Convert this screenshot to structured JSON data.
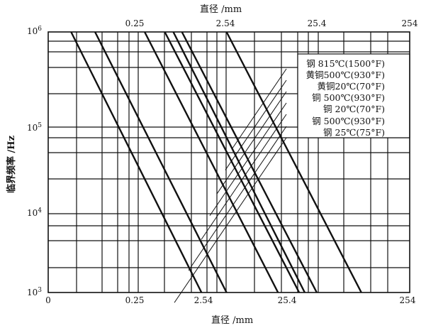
{
  "chart_data": {
    "type": "line",
    "title": "",
    "xlabel": "直径 /mm",
    "xlabel_top": "直径 /mm",
    "ylabel": "临界频率 /Hz",
    "x_scale": "log",
    "y_scale": "log",
    "x_ticks": [
      "0",
      "0.25",
      "2.54",
      "25.4",
      "254"
    ],
    "x_ticks_top": [
      "0.25",
      "2.54",
      "25.4",
      "254"
    ],
    "y_ticks": [
      {
        "base": "10",
        "exp": "3"
      },
      {
        "base": "10",
        "exp": "4"
      },
      {
        "base": "10",
        "exp": "5"
      },
      {
        "base": "10",
        "exp": "6"
      }
    ],
    "ylim": [
      1000,
      1000000
    ],
    "grid": true,
    "legend_position": "top-right",
    "color": "#111111",
    "series": [
      {
        "name": "钢 815℃(1500°F)",
        "x": [
          4.8,
          105
        ],
        "y": [
          1000000,
          1000
        ]
      },
      {
        "name": "黄铜500℃(930°F)",
        "x": [
          1.23,
          44.8
        ],
        "y": [
          1000000,
          1000
        ]
      },
      {
        "name": "黄铜20℃(70°F)",
        "x": [
          0.92,
          35.6
        ],
        "y": [
          1000000,
          1000
        ]
      },
      {
        "name": "铜 500℃(930°F)",
        "x": [
          0.69,
          32
        ],
        "y": [
          1000000,
          1000
        ]
      },
      {
        "name": "铜 20℃(70°F)",
        "x": [
          0.35,
          19.8
        ],
        "y": [
          1000000,
          1000
        ]
      },
      {
        "name": "钢 500℃(930°F)",
        "x": [
          0.087,
          4.8
        ],
        "y": [
          1000000,
          1000
        ]
      },
      {
        "name": "钢 25℃(75°F)",
        "x": [
          0.046,
          2.38
        ],
        "y": [
          1000000,
          1000
        ]
      }
    ]
  }
}
